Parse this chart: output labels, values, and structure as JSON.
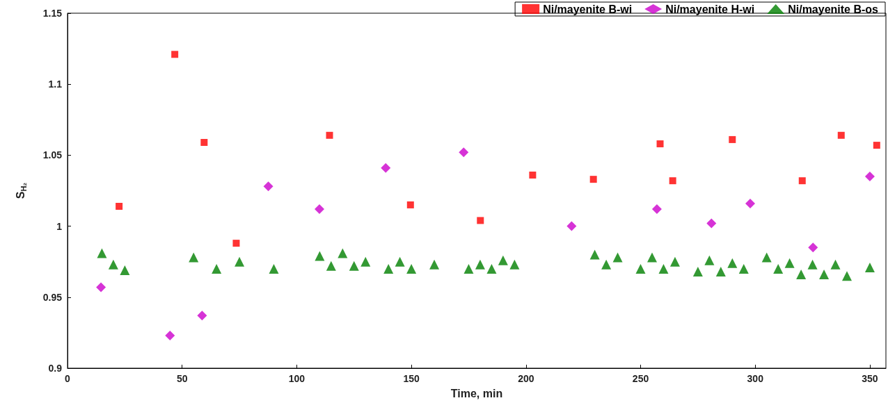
{
  "chart_data": {
    "type": "scatter",
    "xlabel": "Time, min",
    "ylabel": "S$_{H₂}$",
    "xlim": [
      0,
      357
    ],
    "xticks": [
      0,
      50,
      100,
      150,
      200,
      250,
      300,
      350
    ],
    "ylim": [
      0.9,
      1.15
    ],
    "yticks": [
      0.9,
      0.95,
      1,
      1.05,
      1.1,
      1.15
    ],
    "grid": false,
    "legend": "top right",
    "series": [
      {
        "name": "Ni/mayenite B-wi",
        "color": "#ff0000",
        "marker": "square",
        "x": [
          22.5,
          46.8,
          59.6,
          73.6,
          114.3,
          149.6,
          180.1,
          202.9,
          229.4,
          258.5,
          264,
          290,
          320.5,
          337.5,
          353
        ],
        "values": [
          1.014,
          1.121,
          1.059,
          0.988,
          1.064,
          1.015,
          1.004,
          1.036,
          1.033,
          1.058,
          1.032,
          1.061,
          1.032,
          1.064,
          1.057
        ]
      },
      {
        "name": "Ni/mayenite H-wi",
        "color": "#cc00cc",
        "marker": "diamond",
        "x": [
          14.6,
          44.7,
          58.7,
          87.6,
          109.9,
          138.8,
          172.8,
          219.9,
          257.1,
          280.9,
          297.8,
          325.2,
          350
        ],
        "values": [
          0.957,
          0.923,
          0.937,
          1.028,
          1.012,
          1.041,
          1.052,
          1.0,
          1.012,
          1.002,
          1.016,
          0.985,
          1.035
        ]
      },
      {
        "name": "Ni/mayenite B-os",
        "color": "#008000",
        "marker": "triangle",
        "x": [
          15,
          20,
          25,
          55,
          65,
          75,
          90,
          110,
          115,
          120,
          125,
          130,
          140,
          145,
          150,
          160,
          175,
          180,
          185,
          190,
          195,
          230,
          235,
          240,
          250,
          255,
          260,
          265,
          275,
          280,
          285,
          290,
          295,
          305,
          310,
          315,
          320,
          325,
          330,
          335,
          340,
          350
        ],
        "values": [
          0.981,
          0.973,
          0.969,
          0.978,
          0.97,
          0.975,
          0.97,
          0.979,
          0.972,
          0.981,
          0.972,
          0.975,
          0.97,
          0.975,
          0.97,
          0.973,
          0.97,
          0.973,
          0.97,
          0.976,
          0.973,
          0.98,
          0.973,
          0.978,
          0.97,
          0.978,
          0.97,
          0.975,
          0.968,
          0.976,
          0.968,
          0.974,
          0.97,
          0.978,
          0.97,
          0.974,
          0.966,
          0.973,
          0.966,
          0.973,
          0.965,
          0.971
        ]
      }
    ]
  }
}
